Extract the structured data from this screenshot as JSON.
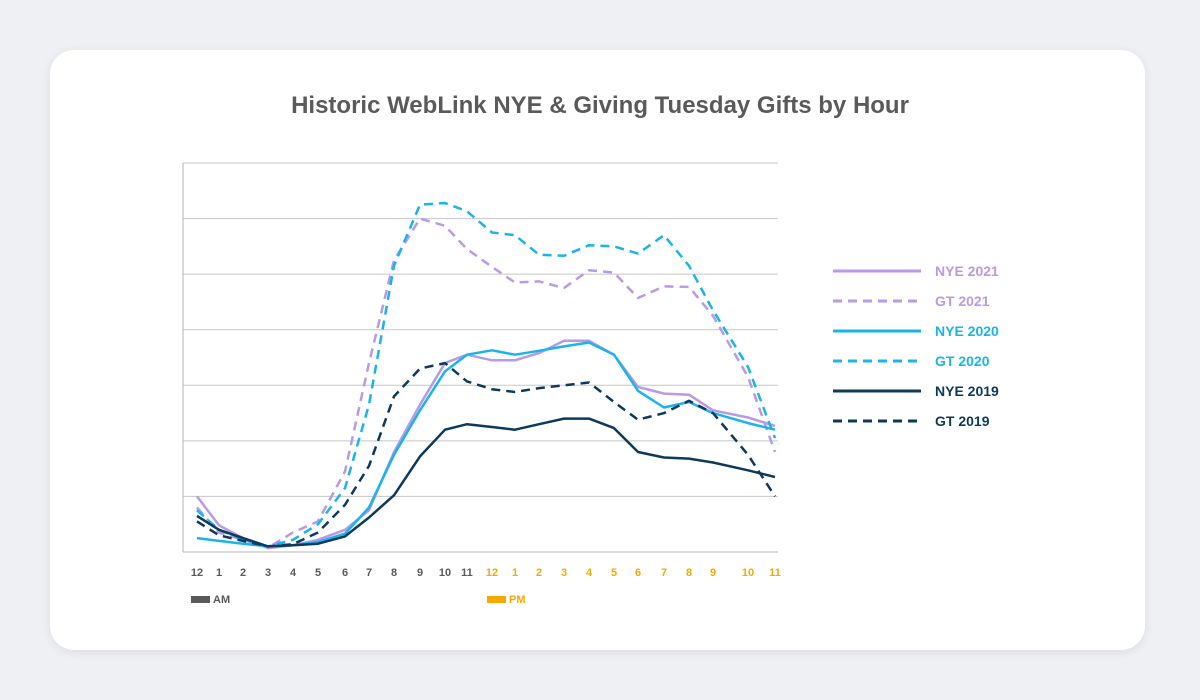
{
  "chart_data": {
    "type": "line",
    "title": "Historic WebLink NYE & Giving Tuesday Gifts by Hour",
    "xlabel": "",
    "ylabel": "",
    "x": [
      "12",
      "1",
      "2",
      "3",
      "4",
      "5",
      "6",
      "7",
      "8",
      "9",
      "10",
      "11",
      "12",
      "1",
      "2",
      "3",
      "4",
      "5",
      "6",
      "7",
      "8",
      "9",
      "10",
      "11"
    ],
    "x_period": [
      "AM",
      "AM",
      "AM",
      "AM",
      "AM",
      "AM",
      "AM",
      "AM",
      "AM",
      "AM",
      "AM",
      "AM",
      "PM",
      "PM",
      "PM",
      "PM",
      "PM",
      "PM",
      "PM",
      "PM",
      "PM",
      "PM",
      "PM",
      "PM"
    ],
    "ylim": [
      0,
      7
    ],
    "grid": true,
    "legend_position": "right",
    "period_legend": [
      {
        "label": "AM",
        "color": "#5a5a5a"
      },
      {
        "label": "PM",
        "color": "#f5a800"
      }
    ],
    "series": [
      {
        "name": "NYE 2021",
        "color": "#b89ae6",
        "dash": false,
        "values": [
          1.0,
          0.48,
          0.25,
          0.07,
          0.12,
          0.22,
          0.4,
          0.75,
          1.8,
          2.65,
          3.4,
          3.55,
          3.45,
          3.45,
          3.58,
          3.8,
          3.8,
          3.55,
          2.97,
          2.85,
          2.83,
          2.55,
          2.42,
          2.27
        ]
      },
      {
        "name": "GT 2021",
        "color": "#b89ae6",
        "dash": true,
        "values": [
          0.8,
          0.35,
          0.22,
          0.08,
          0.35,
          0.55,
          1.45,
          3.4,
          5.25,
          6.0,
          5.87,
          5.45,
          5.13,
          4.85,
          4.87,
          4.75,
          5.07,
          5.03,
          4.57,
          4.78,
          4.77,
          4.25,
          3.15,
          1.8
        ]
      },
      {
        "name": "NYE 2020",
        "color": "#1ab4ea",
        "dash": false,
        "values": [
          0.25,
          0.2,
          0.15,
          0.1,
          0.12,
          0.18,
          0.33,
          0.8,
          1.75,
          2.55,
          3.25,
          3.55,
          3.63,
          3.55,
          3.62,
          3.7,
          3.77,
          3.55,
          2.9,
          2.6,
          2.7,
          2.5,
          2.32,
          2.2
        ]
      },
      {
        "name": "GT 2020",
        "color": "#1ab4ea",
        "dash": true,
        "values": [
          0.75,
          0.4,
          0.22,
          0.1,
          0.22,
          0.5,
          1.15,
          2.65,
          5.15,
          6.25,
          6.28,
          6.13,
          5.75,
          5.7,
          5.35,
          5.33,
          5.52,
          5.5,
          5.37,
          5.7,
          5.15,
          4.35,
          3.33,
          2.05
        ]
      },
      {
        "name": "NYE 2019",
        "color": "#0d3a5c",
        "dash": false,
        "values": [
          0.65,
          0.4,
          0.25,
          0.1,
          0.12,
          0.15,
          0.28,
          0.62,
          1.02,
          1.72,
          2.2,
          2.3,
          2.25,
          2.2,
          2.3,
          2.4,
          2.4,
          2.23,
          1.8,
          1.7,
          1.68,
          1.61,
          1.47,
          1.35
        ]
      },
      {
        "name": "GT 2019",
        "color": "#0d3a5c",
        "dash": true,
        "values": [
          0.55,
          0.3,
          0.2,
          0.1,
          0.14,
          0.35,
          0.85,
          1.55,
          2.8,
          3.3,
          3.4,
          3.07,
          2.93,
          2.88,
          2.95,
          3.0,
          3.05,
          2.7,
          2.38,
          2.5,
          2.72,
          2.5,
          1.75,
          1.0
        ]
      }
    ]
  }
}
